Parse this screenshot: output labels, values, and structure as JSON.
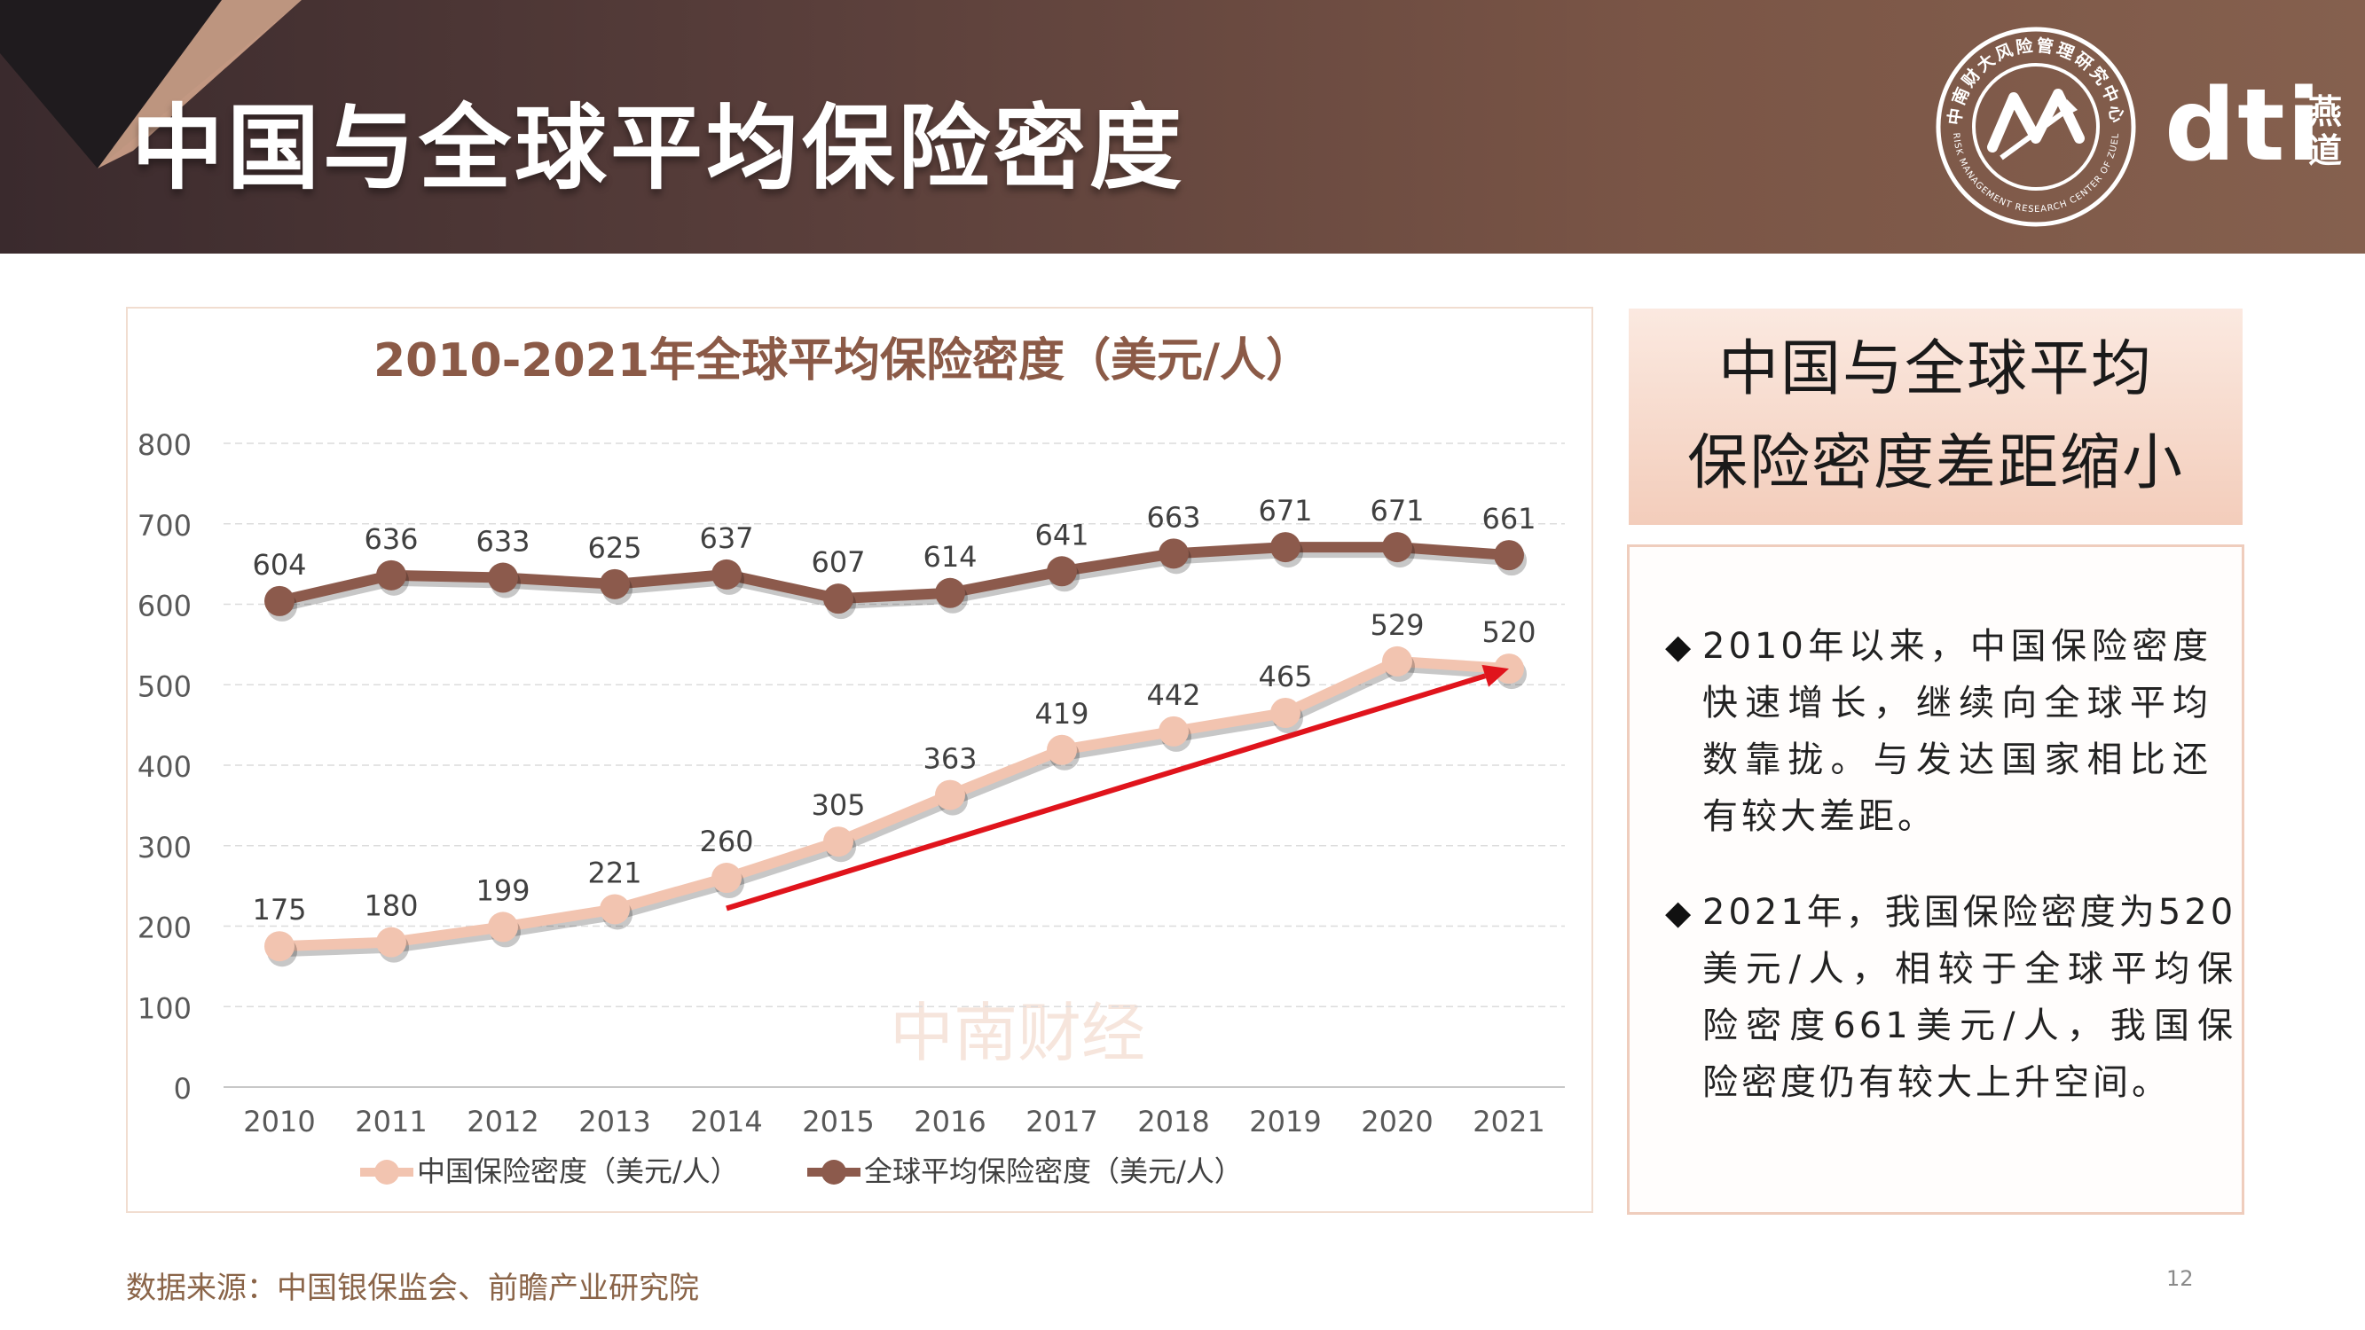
{
  "header": {
    "title": "中国与全球平均保险密度",
    "brand": "dti",
    "brand_cn": "燕道",
    "seal_text_top": "中南财大风险管理研究中心",
    "seal_text_bottom": "RISK MANAGEMENT RESEARCH CENTER OF ZUEL"
  },
  "chart_data": {
    "type": "line",
    "title": "2010-2021年全球平均保险密度（美元/人）",
    "categories": [
      "2010",
      "2011",
      "2012",
      "2013",
      "2014",
      "2015",
      "2016",
      "2017",
      "2018",
      "2019",
      "2020",
      "2021"
    ],
    "series": [
      {
        "name": "中国保险密度（美元/人）",
        "values": [
          175,
          180,
          199,
          221,
          260,
          305,
          363,
          419,
          442,
          465,
          529,
          520
        ],
        "color": "#f2c4b0"
      },
      {
        "name": "全球平均保险密度（美元/人）",
        "values": [
          604,
          636,
          633,
          625,
          637,
          607,
          614,
          641,
          663,
          671,
          671,
          661
        ],
        "color": "#8c5a4c"
      }
    ],
    "ylim": [
      0,
      800
    ],
    "yticks": [
      0,
      100,
      200,
      300,
      400,
      500,
      600,
      700,
      800
    ],
    "grid": true,
    "legend": "bottom",
    "annotation": {
      "type": "trend-arrow",
      "from": {
        "x": "2014",
        "y": 222
      },
      "to": {
        "x": "2021",
        "y": 520
      },
      "color": "#e0141c"
    },
    "watermark": "中南财经"
  },
  "summary": {
    "lines": [
      "中国与全球平均",
      "保险密度差距缩小"
    ]
  },
  "bullets": [
    {
      "lines": [
        "2010年以来，中国保险密度",
        "快速增长，继续向全球平均",
        "数靠拢。与发达国家相比还",
        "有较大差距。"
      ]
    },
    {
      "lines": [
        "2021年，我国保险密度为520",
        "美元/人，相较于全球平均保",
        "险密度661美元/人，我国保",
        "险密度仍有较大上升空间。"
      ]
    }
  ],
  "footer": {
    "source": "数据来源：中国银保监会、前瞻产业研究院",
    "page": "12"
  }
}
